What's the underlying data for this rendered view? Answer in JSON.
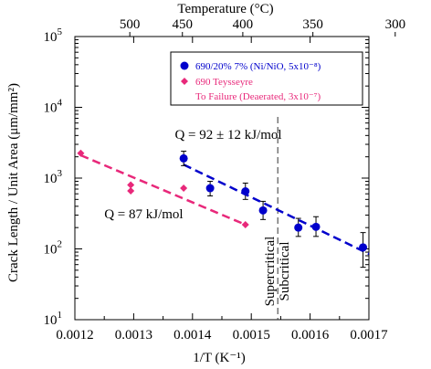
{
  "chart_data": {
    "type": "scatter",
    "title": "",
    "xlabel": "1/T (K⁻¹)",
    "ylabel": "Crack Length / Unit Area (μm/mm²)",
    "top_xlabel": "Temperature (°C)",
    "xlim": [
      0.0012,
      0.0017
    ],
    "ylim": [
      10,
      100000
    ],
    "yscale": "log",
    "grid": false,
    "legend_position": "top-right",
    "x_ticks": [
      {
        "value": 0.0012,
        "label": "0.0012"
      },
      {
        "value": 0.0013,
        "label": "0.0013"
      },
      {
        "value": 0.0014,
        "label": "0.0014"
      },
      {
        "value": 0.0015,
        "label": "0.0015"
      },
      {
        "value": 0.0016,
        "label": "0.0016"
      },
      {
        "value": 0.0017,
        "label": "0.0017"
      }
    ],
    "top_ticks": [
      {
        "value": 500,
        "label": "500"
      },
      {
        "value": 450,
        "label": "450"
      },
      {
        "value": 400,
        "label": "400"
      },
      {
        "value": 350,
        "label": "350"
      },
      {
        "value": 300,
        "label": "300"
      }
    ],
    "y_ticks": [
      {
        "value": 10,
        "base": "10",
        "exp": "1"
      },
      {
        "value": 100,
        "base": "10",
        "exp": "2"
      },
      {
        "value": 1000,
        "base": "10",
        "exp": "3"
      },
      {
        "value": 10000,
        "base": "10",
        "exp": "4"
      },
      {
        "value": 100000,
        "base": "10",
        "exp": "5"
      }
    ],
    "series": [
      {
        "name": "690/20% 7% (Ni/NiO, 5x10⁻⁸)",
        "color": "#0000cc",
        "marker": "circle",
        "points": [
          {
            "x": 0.001385,
            "y": 1900,
            "err": [
              1500,
              2400
            ]
          },
          {
            "x": 0.00143,
            "y": 720,
            "err": [
              560,
              900
            ]
          },
          {
            "x": 0.00149,
            "y": 650,
            "err": [
              500,
              850
            ]
          },
          {
            "x": 0.00152,
            "y": 350,
            "err": [
              260,
              470
            ]
          },
          {
            "x": 0.00158,
            "y": 200,
            "err": [
              150,
              270
            ]
          },
          {
            "x": 0.00161,
            "y": 205,
            "err": [
              150,
              285
            ]
          },
          {
            "x": 0.00169,
            "y": 105,
            "err": [
              55,
              170
            ]
          }
        ],
        "fit": {
          "x": [
            0.001385,
            0.0017
          ],
          "y": [
            1550,
            85
          ]
        }
      },
      {
        "name": "690 Teysseyre",
        "sub_label": "To Failure (Deaerated, 3x10⁻⁷)",
        "color": "#e8287a",
        "marker": "diamond",
        "points": [
          {
            "x": 0.00121,
            "y": 2250
          },
          {
            "x": 0.001295,
            "y": 800
          },
          {
            "x": 0.001295,
            "y": 660
          },
          {
            "x": 0.001385,
            "y": 720
          },
          {
            "x": 0.00149,
            "y": 220
          }
        ],
        "fit": {
          "x": [
            0.00121,
            0.00149
          ],
          "y": [
            2100,
            220
          ]
        }
      }
    ],
    "divider": {
      "x": 0.001545,
      "labels": [
        "Supercritical",
        "Subcritical"
      ]
    },
    "annotations": [
      {
        "text": "Q = 92 ± 12 kJ/mol",
        "x": 0.00137,
        "y": 3600
      },
      {
        "text": "Q = 87 kJ/mol",
        "x": 0.00125,
        "y": 270
      }
    ]
  }
}
